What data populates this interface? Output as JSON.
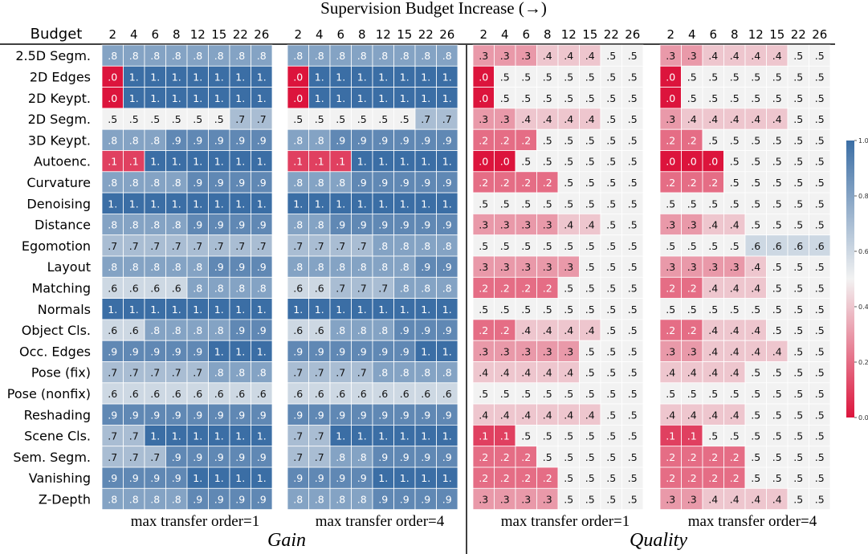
{
  "chart_data": {
    "type": "heatmap",
    "title": "Supervision Budget Increase (→)",
    "row_header": "Budget",
    "budgets": [
      "2",
      "4",
      "6",
      "8",
      "12",
      "15",
      "22",
      "26"
    ],
    "rows": [
      "2.5D Segm.",
      "2D Edges",
      "2D Keypt.",
      "2D Segm.",
      "3D Keypt.",
      "Autoenc.",
      "Curvature",
      "Denoising",
      "Distance",
      "Egomotion",
      "Layout",
      "Matching",
      "Normals",
      "Object Cls.",
      "Occ. Edges",
      "Pose (fix)",
      "Pose (nonfix)",
      "Reshading",
      "Scene Cls.",
      "Sem. Segm.",
      "Vanishing",
      "Z-Depth"
    ],
    "sections": [
      {
        "name": "Gain",
        "panels": [
          "max transfer order=1",
          "max transfer order=4"
        ]
      },
      {
        "name": "Quality",
        "panels": [
          "max transfer order=1",
          "max transfer order=4"
        ]
      }
    ],
    "colorbar": {
      "min": 0.0,
      "max": 1.0,
      "ticks": [
        "0.0",
        "0.2",
        "0.4",
        "0.6",
        "0.8",
        "1.0"
      ],
      "low_color": "#dc143c",
      "mid_color": "#f2f2f2",
      "high_color": "#3b6ea5"
    },
    "panels": [
      {
        "section": "Gain",
        "caption": "max transfer order=1",
        "values": [
          [
            0.8,
            0.8,
            0.8,
            0.8,
            0.8,
            0.8,
            0.8,
            0.8
          ],
          [
            0.0,
            1.0,
            1.0,
            1.0,
            1.0,
            1.0,
            1.0,
            1.0
          ],
          [
            0.0,
            1.0,
            1.0,
            1.0,
            1.0,
            1.0,
            1.0,
            1.0
          ],
          [
            0.5,
            0.5,
            0.5,
            0.5,
            0.5,
            0.5,
            0.7,
            0.7
          ],
          [
            0.8,
            0.8,
            0.8,
            0.9,
            0.9,
            0.9,
            0.9,
            0.9
          ],
          [
            0.1,
            0.1,
            1.0,
            1.0,
            1.0,
            1.0,
            1.0,
            1.0
          ],
          [
            0.8,
            0.8,
            0.8,
            0.8,
            0.9,
            0.9,
            0.9,
            0.9
          ],
          [
            1.0,
            1.0,
            1.0,
            1.0,
            1.0,
            1.0,
            1.0,
            1.0
          ],
          [
            0.8,
            0.8,
            0.8,
            0.8,
            0.9,
            0.9,
            0.9,
            0.9
          ],
          [
            0.7,
            0.7,
            0.7,
            0.7,
            0.7,
            0.7,
            0.7,
            0.7
          ],
          [
            0.8,
            0.8,
            0.8,
            0.8,
            0.8,
            0.9,
            0.9,
            0.9
          ],
          [
            0.6,
            0.6,
            0.6,
            0.6,
            0.8,
            0.8,
            0.8,
            0.8
          ],
          [
            1.0,
            1.0,
            1.0,
            1.0,
            1.0,
            1.0,
            1.0,
            1.0
          ],
          [
            0.6,
            0.6,
            0.8,
            0.8,
            0.8,
            0.8,
            0.9,
            0.9
          ],
          [
            0.9,
            0.9,
            0.9,
            0.9,
            0.9,
            1.0,
            1.0,
            1.0
          ],
          [
            0.7,
            0.7,
            0.7,
            0.7,
            0.7,
            0.8,
            0.8,
            0.8
          ],
          [
            0.6,
            0.6,
            0.6,
            0.6,
            0.6,
            0.6,
            0.6,
            0.6
          ],
          [
            0.9,
            0.9,
            0.9,
            0.9,
            0.9,
            0.9,
            0.9,
            0.9
          ],
          [
            0.7,
            0.7,
            1.0,
            1.0,
            1.0,
            1.0,
            1.0,
            1.0
          ],
          [
            0.7,
            0.7,
            0.7,
            0.9,
            0.9,
            0.9,
            0.9,
            0.9
          ],
          [
            0.9,
            0.9,
            0.9,
            0.9,
            1.0,
            1.0,
            1.0,
            1.0
          ],
          [
            0.8,
            0.8,
            0.8,
            0.8,
            0.9,
            0.9,
            0.9,
            0.9
          ]
        ]
      },
      {
        "section": "Gain",
        "caption": "max transfer order=4",
        "values": [
          [
            0.8,
            0.8,
            0.8,
            0.8,
            0.8,
            0.8,
            0.8,
            0.8
          ],
          [
            0.0,
            1.0,
            1.0,
            1.0,
            1.0,
            1.0,
            1.0,
            1.0
          ],
          [
            0.0,
            1.0,
            1.0,
            1.0,
            1.0,
            1.0,
            1.0,
            1.0
          ],
          [
            0.5,
            0.5,
            0.5,
            0.5,
            0.5,
            0.5,
            0.7,
            0.7
          ],
          [
            0.8,
            0.8,
            0.9,
            0.9,
            0.9,
            0.9,
            0.9,
            0.9
          ],
          [
            0.1,
            0.1,
            0.1,
            1.0,
            1.0,
            1.0,
            1.0,
            1.0
          ],
          [
            0.8,
            0.8,
            0.8,
            0.9,
            0.9,
            0.9,
            0.9,
            0.9
          ],
          [
            1.0,
            1.0,
            1.0,
            1.0,
            1.0,
            1.0,
            1.0,
            1.0
          ],
          [
            0.8,
            0.8,
            0.9,
            0.9,
            0.9,
            0.9,
            0.9,
            0.9
          ],
          [
            0.7,
            0.7,
            0.7,
            0.7,
            0.8,
            0.8,
            0.8,
            0.8
          ],
          [
            0.8,
            0.8,
            0.8,
            0.8,
            0.8,
            0.8,
            0.9,
            0.9
          ],
          [
            0.6,
            0.6,
            0.7,
            0.7,
            0.7,
            0.8,
            0.8,
            0.8
          ],
          [
            1.0,
            1.0,
            1.0,
            1.0,
            1.0,
            1.0,
            1.0,
            1.0
          ],
          [
            0.6,
            0.6,
            0.8,
            0.8,
            0.8,
            0.9,
            0.9,
            0.9
          ],
          [
            0.9,
            0.9,
            0.9,
            0.9,
            0.9,
            0.9,
            1.0,
            1.0
          ],
          [
            0.7,
            0.7,
            0.7,
            0.7,
            0.8,
            0.8,
            0.8,
            0.8
          ],
          [
            0.6,
            0.6,
            0.6,
            0.6,
            0.6,
            0.6,
            0.6,
            0.6
          ],
          [
            0.9,
            0.9,
            0.9,
            0.9,
            0.9,
            0.9,
            0.9,
            0.9
          ],
          [
            0.7,
            0.7,
            1.0,
            1.0,
            1.0,
            1.0,
            1.0,
            1.0
          ],
          [
            0.7,
            0.7,
            0.8,
            0.8,
            0.9,
            0.9,
            0.9,
            0.9
          ],
          [
            0.9,
            0.9,
            0.9,
            0.9,
            1.0,
            1.0,
            1.0,
            1.0
          ],
          [
            0.8,
            0.8,
            0.8,
            0.8,
            0.9,
            0.9,
            0.9,
            0.9
          ]
        ]
      },
      {
        "section": "Quality",
        "caption": "max transfer order=1",
        "values": [
          [
            0.3,
            0.3,
            0.3,
            0.4,
            0.4,
            0.4,
            0.5,
            0.5
          ],
          [
            0.0,
            0.5,
            0.5,
            0.5,
            0.5,
            0.5,
            0.5,
            0.5
          ],
          [
            0.0,
            0.5,
            0.5,
            0.5,
            0.5,
            0.5,
            0.5,
            0.5
          ],
          [
            0.3,
            0.3,
            0.4,
            0.4,
            0.4,
            0.4,
            0.5,
            0.5
          ],
          [
            0.2,
            0.2,
            0.2,
            0.5,
            0.5,
            0.5,
            0.5,
            0.5
          ],
          [
            0.0,
            0.0,
            0.5,
            0.5,
            0.5,
            0.5,
            0.5,
            0.5
          ],
          [
            0.2,
            0.2,
            0.2,
            0.2,
            0.5,
            0.5,
            0.5,
            0.5
          ],
          [
            0.5,
            0.5,
            0.5,
            0.5,
            0.5,
            0.5,
            0.5,
            0.5
          ],
          [
            0.3,
            0.3,
            0.3,
            0.3,
            0.4,
            0.4,
            0.5,
            0.5
          ],
          [
            0.5,
            0.5,
            0.5,
            0.5,
            0.5,
            0.5,
            0.5,
            0.5
          ],
          [
            0.3,
            0.3,
            0.3,
            0.3,
            0.3,
            0.5,
            0.5,
            0.5
          ],
          [
            0.2,
            0.2,
            0.2,
            0.2,
            0.5,
            0.5,
            0.5,
            0.5
          ],
          [
            0.5,
            0.5,
            0.5,
            0.5,
            0.5,
            0.5,
            0.5,
            0.5
          ],
          [
            0.2,
            0.2,
            0.4,
            0.4,
            0.4,
            0.4,
            0.5,
            0.5
          ],
          [
            0.3,
            0.3,
            0.3,
            0.3,
            0.3,
            0.5,
            0.5,
            0.5
          ],
          [
            0.4,
            0.4,
            0.4,
            0.4,
            0.4,
            0.5,
            0.5,
            0.5
          ],
          [
            0.5,
            0.5,
            0.5,
            0.5,
            0.5,
            0.5,
            0.5,
            0.5
          ],
          [
            0.4,
            0.4,
            0.4,
            0.4,
            0.4,
            0.4,
            0.5,
            0.5
          ],
          [
            0.1,
            0.1,
            0.5,
            0.5,
            0.5,
            0.5,
            0.5,
            0.5
          ],
          [
            0.2,
            0.2,
            0.2,
            0.5,
            0.5,
            0.5,
            0.5,
            0.5
          ],
          [
            0.2,
            0.2,
            0.2,
            0.2,
            0.5,
            0.5,
            0.5,
            0.5
          ],
          [
            0.3,
            0.3,
            0.3,
            0.3,
            0.5,
            0.5,
            0.5,
            0.5
          ]
        ]
      },
      {
        "section": "Quality",
        "caption": "max transfer order=4",
        "values": [
          [
            0.3,
            0.3,
            0.4,
            0.4,
            0.4,
            0.4,
            0.5,
            0.5
          ],
          [
            0.0,
            0.5,
            0.5,
            0.5,
            0.5,
            0.5,
            0.5,
            0.5
          ],
          [
            0.0,
            0.5,
            0.5,
            0.5,
            0.5,
            0.5,
            0.5,
            0.5
          ],
          [
            0.3,
            0.4,
            0.4,
            0.4,
            0.4,
            0.4,
            0.5,
            0.5
          ],
          [
            0.2,
            0.2,
            0.5,
            0.5,
            0.5,
            0.5,
            0.5,
            0.5
          ],
          [
            0.0,
            0.0,
            0.0,
            0.5,
            0.5,
            0.5,
            0.5,
            0.5
          ],
          [
            0.2,
            0.2,
            0.2,
            0.5,
            0.5,
            0.5,
            0.5,
            0.5
          ],
          [
            0.5,
            0.5,
            0.5,
            0.5,
            0.5,
            0.5,
            0.5,
            0.5
          ],
          [
            0.3,
            0.3,
            0.4,
            0.4,
            0.5,
            0.5,
            0.5,
            0.5
          ],
          [
            0.5,
            0.5,
            0.5,
            0.5,
            0.6,
            0.6,
            0.6,
            0.6
          ],
          [
            0.3,
            0.3,
            0.3,
            0.3,
            0.4,
            0.5,
            0.5,
            0.5
          ],
          [
            0.2,
            0.2,
            0.4,
            0.4,
            0.4,
            0.5,
            0.5,
            0.5
          ],
          [
            0.5,
            0.5,
            0.5,
            0.5,
            0.5,
            0.5,
            0.5,
            0.5
          ],
          [
            0.2,
            0.2,
            0.4,
            0.4,
            0.4,
            0.5,
            0.5,
            0.5
          ],
          [
            0.3,
            0.3,
            0.4,
            0.4,
            0.4,
            0.4,
            0.5,
            0.5
          ],
          [
            0.4,
            0.4,
            0.4,
            0.4,
            0.5,
            0.5,
            0.5,
            0.5
          ],
          [
            0.5,
            0.5,
            0.5,
            0.5,
            0.5,
            0.5,
            0.5,
            0.5
          ],
          [
            0.4,
            0.4,
            0.4,
            0.4,
            0.5,
            0.5,
            0.5,
            0.5
          ],
          [
            0.1,
            0.1,
            0.5,
            0.5,
            0.5,
            0.5,
            0.5,
            0.5
          ],
          [
            0.2,
            0.2,
            0.2,
            0.2,
            0.5,
            0.5,
            0.5,
            0.5
          ],
          [
            0.2,
            0.2,
            0.2,
            0.2,
            0.5,
            0.5,
            0.5,
            0.5
          ],
          [
            0.3,
            0.3,
            0.4,
            0.4,
            0.4,
            0.4,
            0.5,
            0.5
          ]
        ]
      }
    ]
  }
}
